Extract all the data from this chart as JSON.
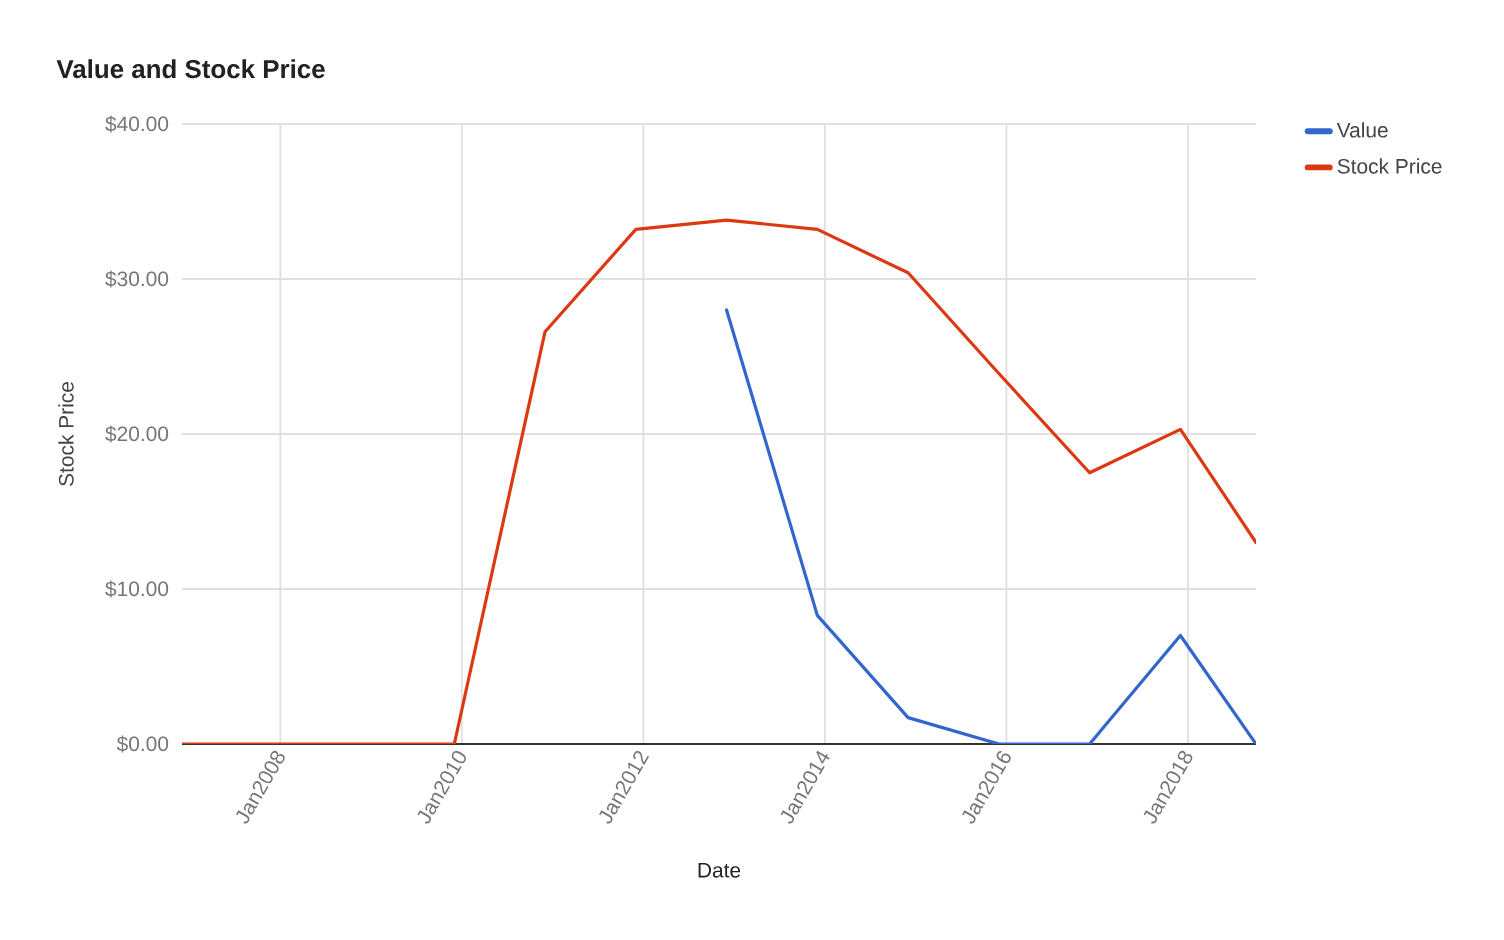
{
  "chart_data": {
    "type": "line",
    "title": "Value and Stock Price",
    "xlabel": "Date",
    "ylabel": "Stock Price",
    "x": [
      "2006-12",
      "2007-12",
      "2008-12",
      "2009-12",
      "2010-12",
      "2011-12",
      "2012-12",
      "2013-12",
      "2014-12",
      "2015-12",
      "2016-12",
      "2017-12",
      "2018-10"
    ],
    "series": [
      {
        "name": "Value",
        "color": "#3366cc",
        "values": [
          null,
          null,
          null,
          null,
          null,
          null,
          28.0,
          8.3,
          1.7,
          0,
          0,
          7.0,
          0
        ]
      },
      {
        "name": "Stock Price",
        "color": "#dc3912",
        "values": [
          0,
          0,
          0,
          0,
          26.6,
          33.2,
          33.8,
          33.2,
          30.4,
          23.9,
          17.5,
          20.3,
          13.0
        ]
      }
    ],
    "xlim": [
      "2006-12",
      "2018-10"
    ],
    "ylim": [
      0,
      40
    ],
    "xticks": [
      {
        "value": "2008-01",
        "label": "Jan2008"
      },
      {
        "value": "2010-01",
        "label": "Jan2010"
      },
      {
        "value": "2012-01",
        "label": "Jan2012"
      },
      {
        "value": "2014-01",
        "label": "Jan2014"
      },
      {
        "value": "2016-01",
        "label": "Jan2016"
      },
      {
        "value": "2018-01",
        "label": "Jan2018"
      }
    ],
    "yticks": [
      {
        "value": 0,
        "label": "$0.00"
      },
      {
        "value": 10,
        "label": "$10.00"
      },
      {
        "value": 20,
        "label": "$20.00"
      },
      {
        "value": 30,
        "label": "$30.00"
      },
      {
        "value": 40,
        "label": "$40.00"
      }
    ],
    "grid": true,
    "legend": "right",
    "marker": "none",
    "line_style": "solid"
  }
}
